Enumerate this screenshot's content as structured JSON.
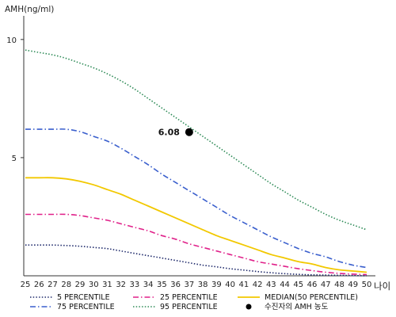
{
  "chart_data": {
    "type": "line",
    "ylabel": "AMH(ng/ml)",
    "xlabel": "나이",
    "xlim": [
      25,
      50
    ],
    "ylim": [
      0,
      11
    ],
    "x": [
      25,
      26,
      27,
      28,
      29,
      30,
      31,
      32,
      33,
      34,
      35,
      36,
      37,
      38,
      39,
      40,
      41,
      42,
      43,
      44,
      45,
      46,
      47,
      48,
      49,
      50
    ],
    "x_ticks": [
      "25",
      "26",
      "27",
      "28",
      "29",
      "30",
      "31",
      "32",
      "33",
      "34",
      "35",
      "36",
      "37",
      "38",
      "39",
      "40",
      "41",
      "42",
      "43",
      "44",
      "45",
      "46",
      "47",
      "48",
      "49",
      "50"
    ],
    "y_ticks": [
      {
        "value": 5,
        "label": "5"
      },
      {
        "value": 10,
        "label": "10"
      }
    ],
    "grid": false,
    "series": [
      {
        "name": "95 PERCENTILE",
        "color": "#2e8b57",
        "style": "dotted",
        "values": [
          9.55,
          9.45,
          9.35,
          9.2,
          9.0,
          8.8,
          8.55,
          8.25,
          7.9,
          7.5,
          7.1,
          6.7,
          6.3,
          5.9,
          5.5,
          5.1,
          4.7,
          4.3,
          3.9,
          3.55,
          3.2,
          2.9,
          2.6,
          2.35,
          2.15,
          1.95
        ]
      },
      {
        "name": "75 PERCENTILE",
        "color": "#3a5fcd",
        "style": "dashdot",
        "values": [
          6.2,
          6.2,
          6.2,
          6.2,
          6.1,
          5.9,
          5.7,
          5.4,
          5.05,
          4.7,
          4.3,
          3.95,
          3.6,
          3.25,
          2.9,
          2.55,
          2.25,
          1.95,
          1.65,
          1.4,
          1.15,
          0.95,
          0.8,
          0.6,
          0.45,
          0.35
        ]
      },
      {
        "name": "MEDIAN(50 PERCENTILE)",
        "color": "#f2c800",
        "style": "solid",
        "values": [
          4.15,
          4.15,
          4.15,
          4.1,
          4.0,
          3.85,
          3.65,
          3.45,
          3.2,
          2.95,
          2.7,
          2.45,
          2.2,
          1.95,
          1.7,
          1.5,
          1.3,
          1.1,
          0.9,
          0.75,
          0.6,
          0.5,
          0.35,
          0.25,
          0.2,
          0.15
        ]
      },
      {
        "name": "25 PERCENTILE",
        "color": "#e0218a",
        "style": "dashdot",
        "values": [
          2.6,
          2.6,
          2.6,
          2.6,
          2.55,
          2.45,
          2.35,
          2.2,
          2.05,
          1.9,
          1.7,
          1.55,
          1.35,
          1.2,
          1.05,
          0.9,
          0.75,
          0.6,
          0.5,
          0.4,
          0.3,
          0.22,
          0.15,
          0.1,
          0.07,
          0.05
        ]
      },
      {
        "name": "5 PERCENTILE",
        "color": "#1f2a6b",
        "style": "dotted",
        "values": [
          1.3,
          1.3,
          1.3,
          1.28,
          1.25,
          1.2,
          1.15,
          1.05,
          0.95,
          0.85,
          0.75,
          0.65,
          0.55,
          0.45,
          0.38,
          0.3,
          0.24,
          0.18,
          0.13,
          0.09,
          0.06,
          0.04,
          0.03,
          0.02,
          0.01,
          0.0
        ]
      }
    ],
    "point": {
      "name": "수진자의 AMH 농도",
      "x": 37,
      "y": 6.08,
      "label": "6.08",
      "color": "#000000"
    },
    "legend": {
      "placement": "bottom",
      "entries": [
        {
          "label": "5 PERCENTILE",
          "color": "#1f2a6b",
          "style": "dotted"
        },
        {
          "label": "25 PERCENTILE",
          "color": "#e0218a",
          "style": "dashdot"
        },
        {
          "label": "MEDIAN(50 PERCENTILE)",
          "color": "#f2c800",
          "style": "solid"
        },
        {
          "label": "75 PERCENTILE",
          "color": "#3a5fcd",
          "style": "dashdot"
        },
        {
          "label": "95 PERCENTILE",
          "color": "#2e8b57",
          "style": "dotted"
        },
        {
          "label": "수진자의 AMH 농도",
          "color": "#000000",
          "style": "marker"
        }
      ]
    }
  }
}
